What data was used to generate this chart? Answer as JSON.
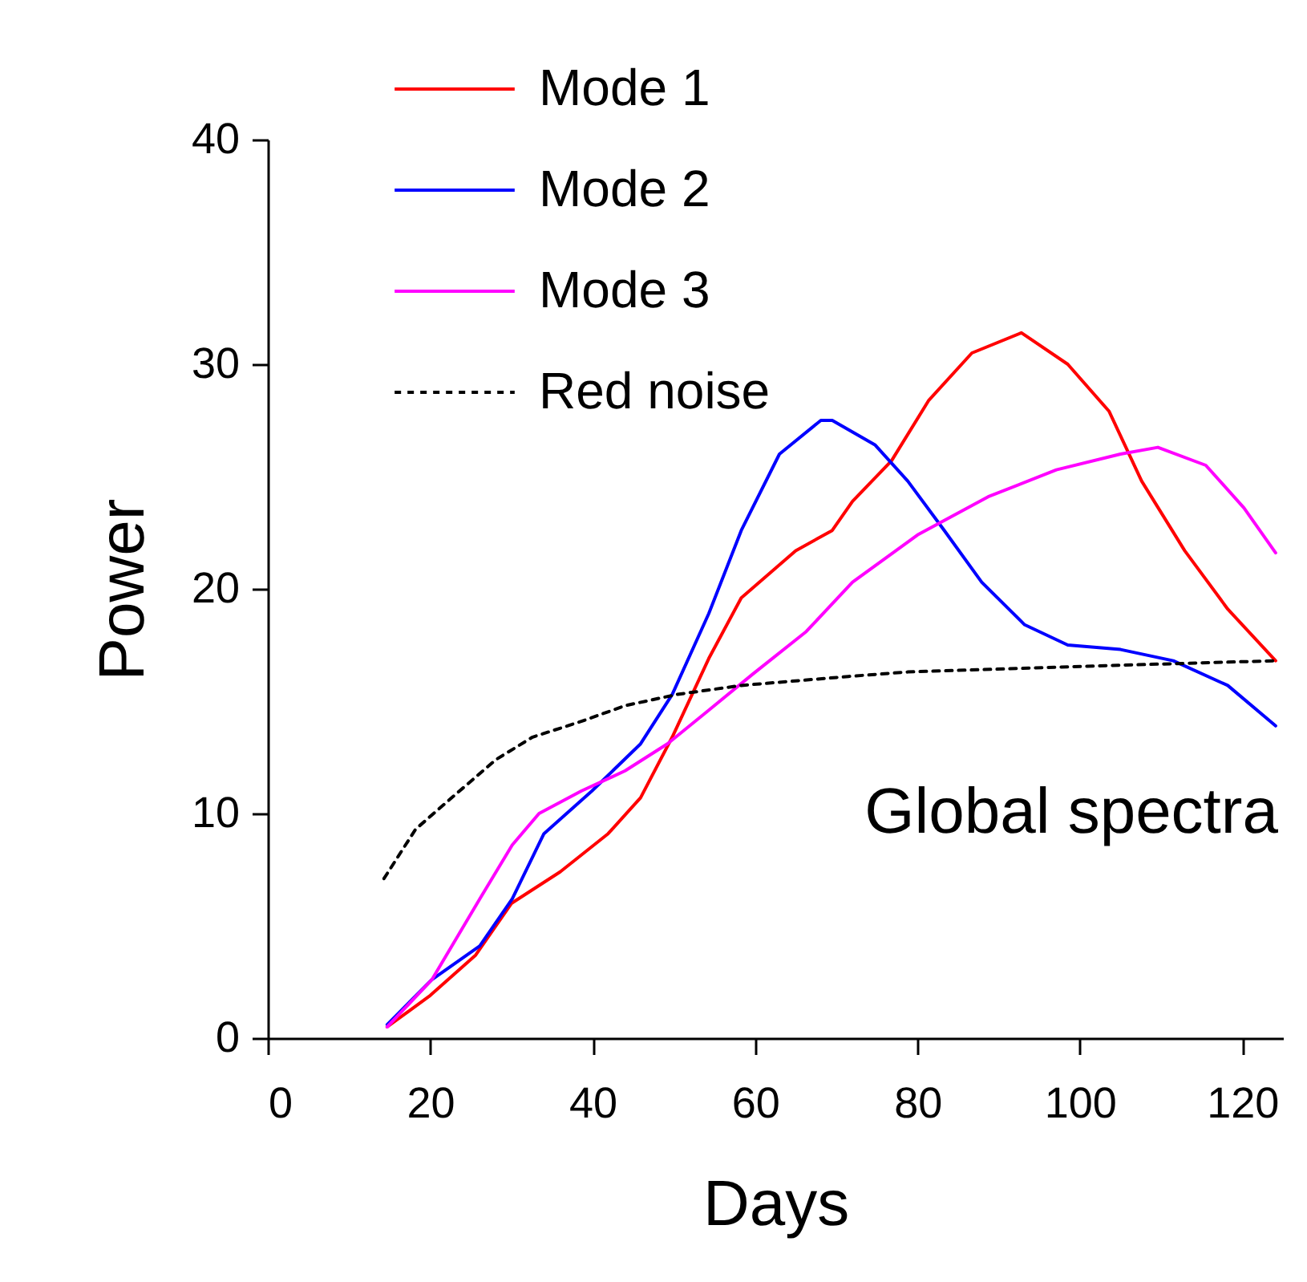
{
  "chart_data": {
    "type": "line",
    "xlabel": "Days",
    "ylabel": "Power",
    "annotations": [
      "Global spectra"
    ],
    "xlim": [
      0,
      125
    ],
    "xticks": [
      0,
      20,
      40,
      60,
      80,
      100,
      120
    ],
    "ylim": [
      0,
      40
    ],
    "yticks": [
      0,
      10,
      20,
      30,
      40
    ],
    "grid": false,
    "legend": "top left",
    "marker": "none",
    "series": [
      {
        "name": "Mode 1",
        "color": "#ff0000",
        "line_style": "solid",
        "x": [
          14.7,
          20,
          25.6,
          30,
          36,
          41.9,
          45.9,
          49.8,
          54.3,
          58.3,
          65,
          69.5,
          72,
          76.8,
          81.4,
          86.7,
          92.8,
          98.5,
          103.6,
          107.6,
          112.9,
          118.2,
          124.1
        ],
        "values": [
          0.5,
          1.9,
          3.7,
          6.0,
          7.4,
          9.1,
          10.7,
          13.4,
          16.9,
          19.6,
          21.7,
          22.6,
          23.9,
          25.7,
          28.4,
          30.5,
          31.4,
          30,
          27.9,
          24.8,
          21.7,
          19.1,
          16.8
        ]
      },
      {
        "name": "Mode 2",
        "color": "#0000ff",
        "line_style": "solid",
        "x": [
          14.7,
          20.2,
          26.1,
          30.1,
          34,
          39.9,
          45.9,
          49.8,
          54.3,
          58.3,
          63,
          68.1,
          69.5,
          74.8,
          78.8,
          83.3,
          87.9,
          93.2,
          98.5,
          105,
          111.5,
          118.2,
          124.1
        ],
        "values": [
          0.6,
          2.6,
          4.1,
          6.2,
          9.1,
          11,
          13.1,
          15.3,
          18.9,
          22.6,
          26,
          27.5,
          27.5,
          26.4,
          24.8,
          22.6,
          20.3,
          18.4,
          17.5,
          17.3,
          16.8,
          15.7,
          13.9
        ]
      },
      {
        "name": "Mode 3",
        "color": "#ff00ff",
        "line_style": "solid",
        "x": [
          14.7,
          20.2,
          26.1,
          30.1,
          33.4,
          38.6,
          44,
          49.2,
          54.3,
          59.7,
          66.3,
          72,
          80,
          88.7,
          97.1,
          105,
          109.6,
          115.5,
          120.2,
          124.1
        ],
        "values": [
          0.5,
          2.6,
          6.2,
          8.6,
          10,
          11,
          11.9,
          13.1,
          14.6,
          16.2,
          18.1,
          20.3,
          22.4,
          24.1,
          25.3,
          26,
          26.3,
          25.5,
          23.6,
          21.6
        ]
      },
      {
        "name": "Red noise",
        "color": "#000000",
        "line_style": "dashed",
        "x": [
          14.3,
          18.2,
          23.6,
          28.1,
          32.6,
          38.6,
          44,
          50.4,
          58.3,
          71.5,
          78.8,
          105,
          124.1
        ],
        "values": [
          7.1,
          9.3,
          11,
          12.4,
          13.4,
          14.1,
          14.8,
          15.3,
          15.7,
          16.1,
          16.3,
          16.6,
          16.8
        ]
      }
    ]
  }
}
